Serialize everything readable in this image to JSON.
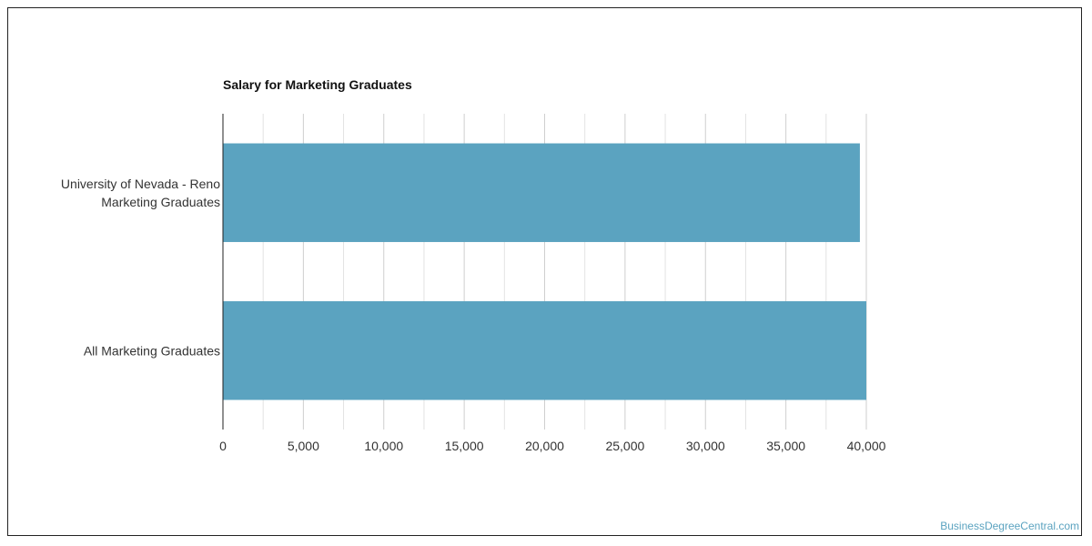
{
  "watermark": "BusinessDegreeCentral.com",
  "colors": {
    "bar": "#5ba3c0",
    "grid": "#e2e2e2",
    "grid_major": "#cfcfcf",
    "axis": "#222222"
  },
  "chart_data": {
    "type": "bar",
    "orientation": "horizontal",
    "title": "Salary for Marketing Graduates",
    "xlabel": "",
    "ylabel": "",
    "categories": [
      [
        "University of Nevada - Reno",
        "Marketing Graduates"
      ],
      [
        "All Marketing Graduates"
      ]
    ],
    "values": [
      39600,
      40000
    ],
    "xlim": [
      0,
      40000
    ],
    "xticks": [
      0,
      5000,
      10000,
      15000,
      20000,
      25000,
      30000,
      35000,
      40000
    ],
    "xtick_labels": [
      "0",
      "5,000",
      "10,000",
      "15,000",
      "20,000",
      "25,000",
      "30,000",
      "35,000",
      "40,000"
    ],
    "grid": true,
    "legend": "none"
  }
}
